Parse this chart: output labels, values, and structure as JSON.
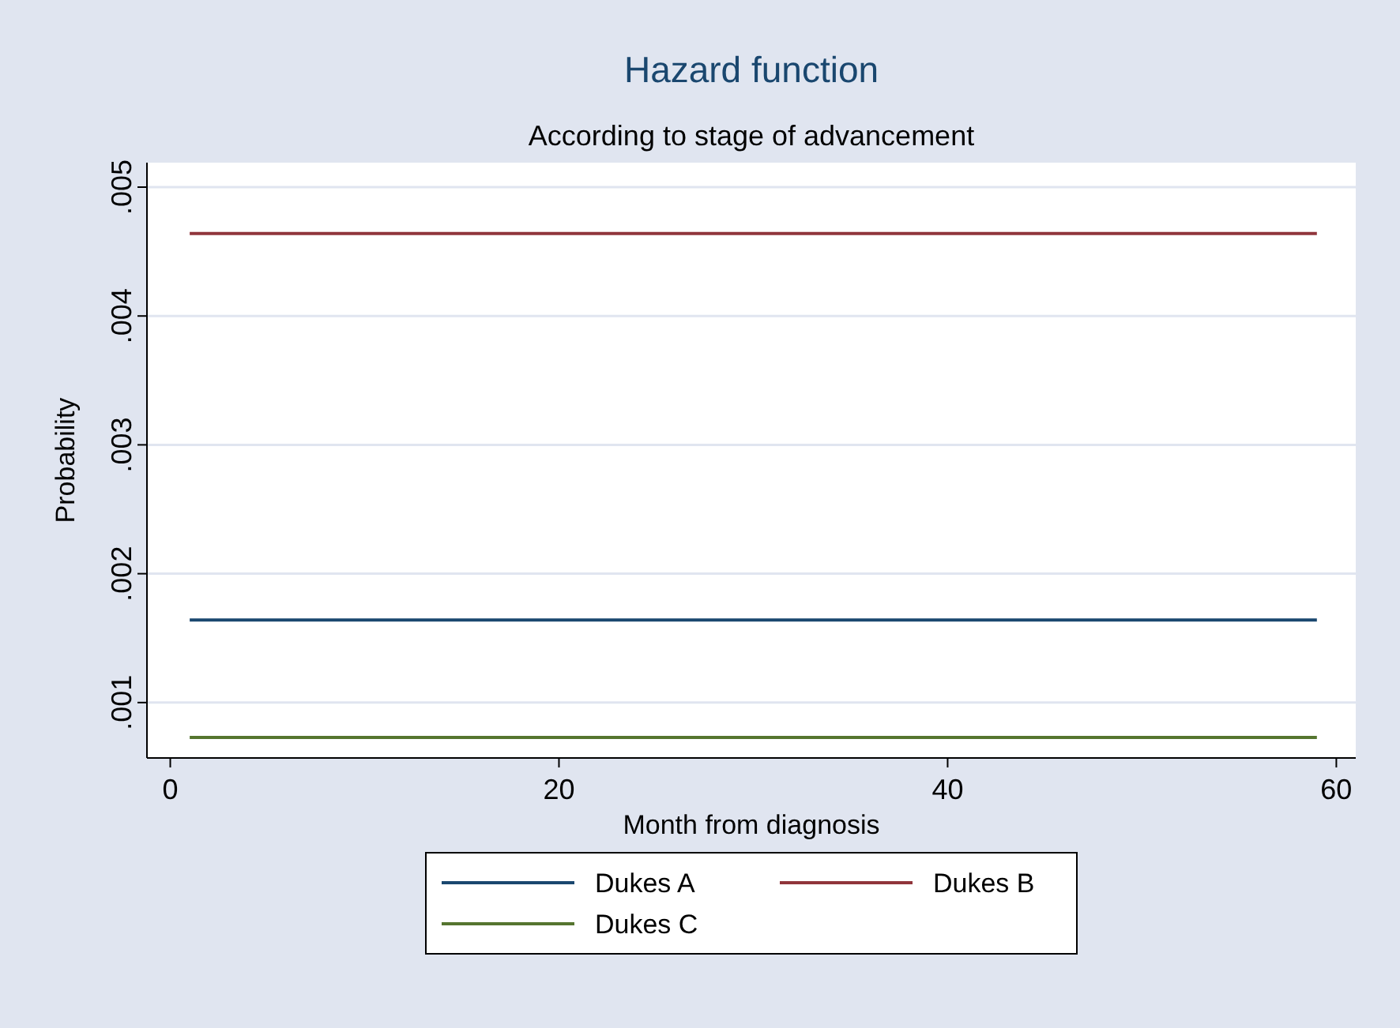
{
  "chart_data": {
    "type": "line",
    "title": "Hazard function",
    "subtitle": "According to stage of advancement",
    "xlabel": "Month from diagnosis",
    "ylabel": "Probability",
    "x": [
      1,
      59
    ],
    "series": [
      {
        "name": "Dukes A",
        "color": "#1a476f",
        "values": [
          0.00164,
          0.00164
        ]
      },
      {
        "name": "Dukes B",
        "color": "#90353b",
        "values": [
          0.00464,
          0.00464
        ]
      },
      {
        "name": "Dukes C",
        "color": "#55752f",
        "values": [
          0.00073,
          0.00073
        ]
      }
    ],
    "xlim": [
      -1.2,
      61
    ],
    "xticks": [
      0,
      20,
      40,
      60
    ],
    "ylim": [
      0.00057,
      0.00519
    ],
    "yticks": [
      {
        "value": 0.001,
        "label": ".001"
      },
      {
        "value": 0.002,
        "label": ".002"
      },
      {
        "value": 0.003,
        "label": ".003"
      },
      {
        "value": 0.004,
        "label": ".004"
      },
      {
        "value": 0.005,
        "label": ".005"
      }
    ],
    "grid": "y",
    "legend": "bottom",
    "marker": "none",
    "line_style": "solid"
  }
}
